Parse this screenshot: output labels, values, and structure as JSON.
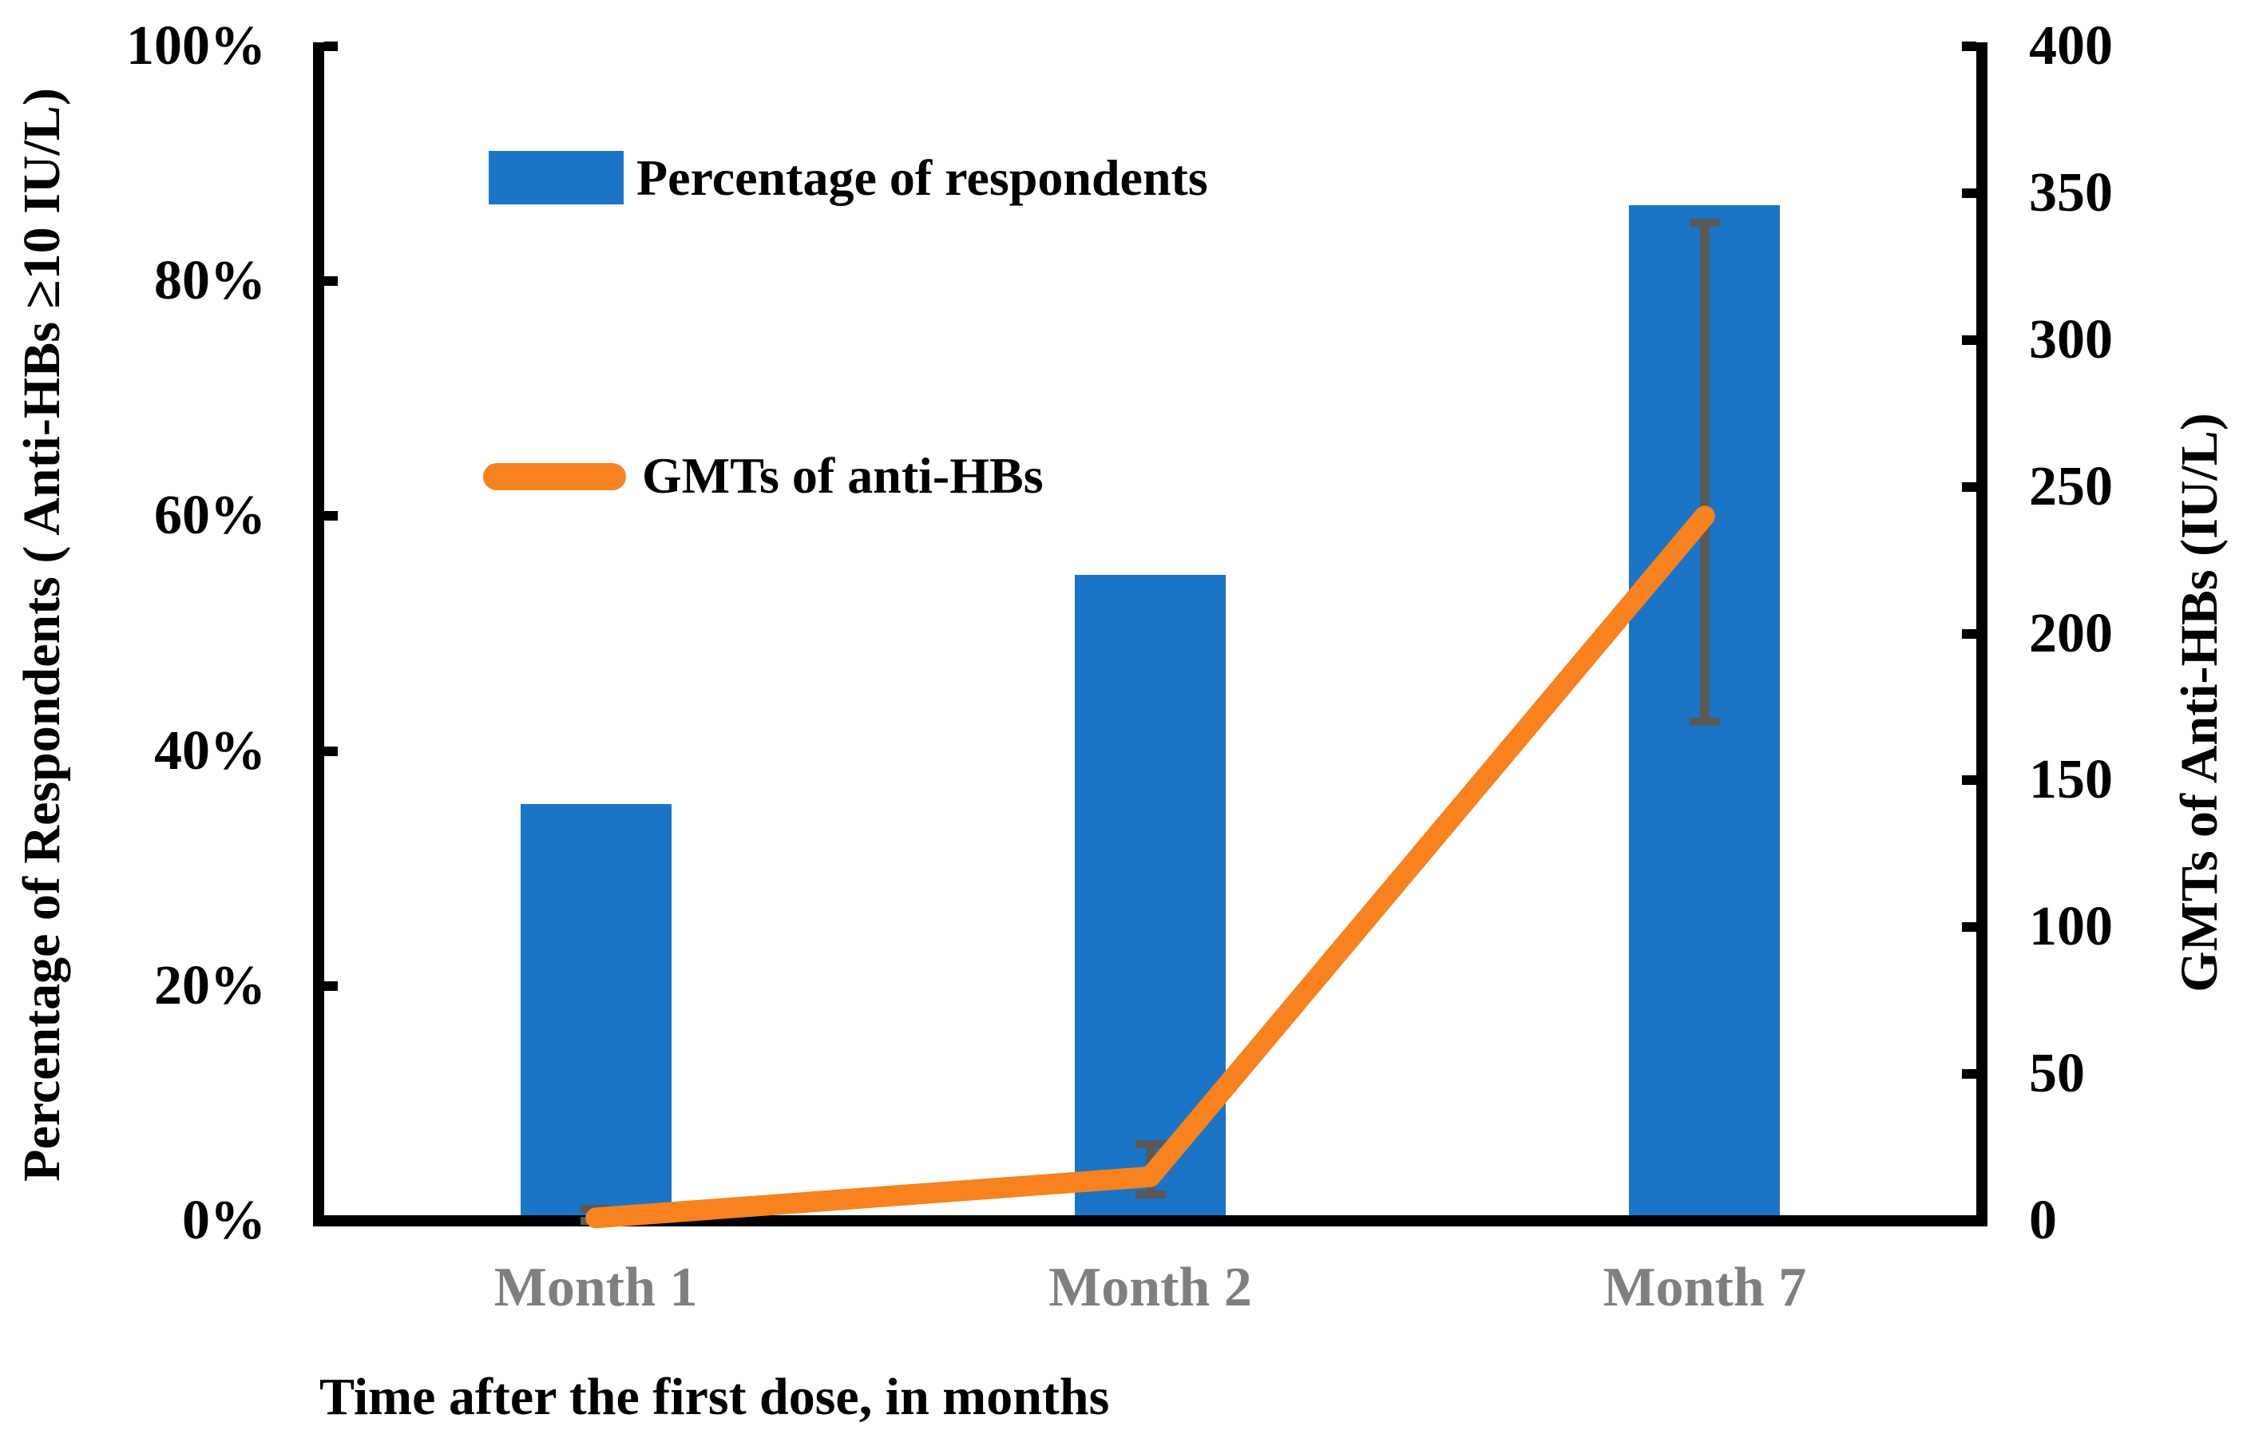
{
  "chart_data": {
    "type": "combo-bar-line",
    "categories": [
      "Month 1",
      "Month 2",
      "Month 7"
    ],
    "x_axis_title": "Time after the first dose, in months",
    "left_axis": {
      "title": "Percentage of Respondents ( Anti-HBs ≥10 IU/L)",
      "min": 0,
      "max": 100,
      "ticks": [
        {
          "label": "0%",
          "value": 0
        },
        {
          "label": "20%",
          "value": 20
        },
        {
          "label": "40%",
          "value": 40
        },
        {
          "label": "60%",
          "value": 60
        },
        {
          "label": "80%",
          "value": 80
        },
        {
          "label": "100%",
          "value": 100
        }
      ]
    },
    "right_axis": {
      "title": "GMTs of Anti-HBs (IU/L)",
      "min": 0,
      "max": 400,
      "ticks": [
        {
          "label": "0",
          "value": 0
        },
        {
          "label": "50",
          "value": 50
        },
        {
          "label": "100",
          "value": 100
        },
        {
          "label": "150",
          "value": 150
        },
        {
          "label": "200",
          "value": 200
        },
        {
          "label": "250",
          "value": 250
        },
        {
          "label": "300",
          "value": 300
        },
        {
          "label": "350",
          "value": 350
        },
        {
          "label": "400",
          "value": 400
        }
      ]
    },
    "series": [
      {
        "name": "Percentage of respondents",
        "type": "bar",
        "axis": "left",
        "values": [
          35.5,
          55,
          86.5
        ],
        "color": "#1B74C6"
      },
      {
        "name": "GMTs of anti-HBs",
        "type": "line",
        "axis": "right",
        "values": [
          1,
          15,
          240
        ],
        "color": "#F8821F",
        "error_color": "#595959",
        "error_bars": [
          {
            "low": 0,
            "high": 4
          },
          {
            "low": 9,
            "high": 26
          },
          {
            "low": 170,
            "high": 340
          }
        ]
      }
    ],
    "legend_position": "top-left-inside",
    "grid": "off"
  },
  "colors": {
    "bar_blue": "#1B74C6",
    "line_orange": "#F8821F",
    "error_gray": "#595959",
    "category_label_gray": "#7f7f7f",
    "axis_black": "#000000"
  }
}
